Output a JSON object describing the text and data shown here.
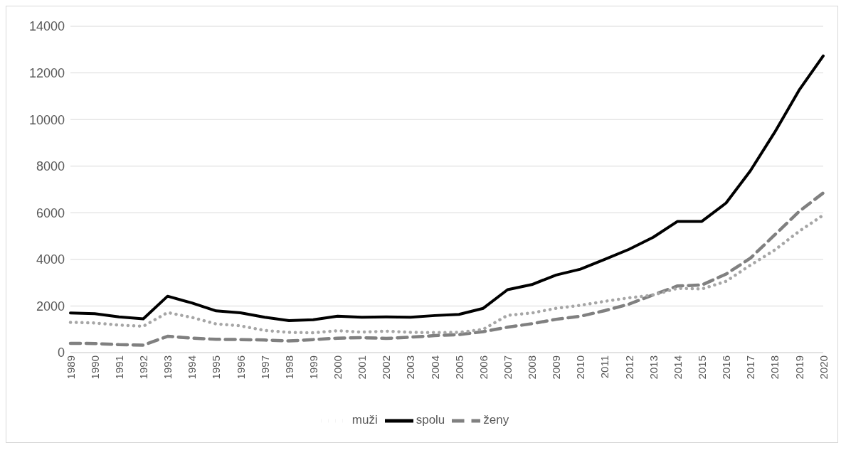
{
  "chart_data": {
    "type": "line",
    "categories": [
      "1989",
      "1990",
      "1991",
      "1992",
      "1993",
      "1994",
      "1995",
      "1996",
      "1997",
      "1998",
      "1999",
      "2000",
      "2001",
      "2002",
      "2003",
      "2004",
      "2005",
      "2006",
      "2007",
      "2008",
      "2009",
      "2010",
      "2011",
      "2012",
      "2013",
      "2014",
      "2015",
      "2016",
      "2017",
      "2018",
      "2019",
      "2020"
    ],
    "series": [
      {
        "name": "spolu",
        "color": "#000000",
        "line_style": "solid",
        "values": [
          1700,
          1670,
          1530,
          1450,
          2420,
          2130,
          1790,
          1710,
          1520,
          1370,
          1410,
          1560,
          1520,
          1530,
          1520,
          1590,
          1640,
          1900,
          2700,
          2920,
          3330,
          3580,
          4000,
          4430,
          4950,
          5630,
          5630,
          6420,
          7800,
          9450,
          11250,
          12730
        ]
      },
      {
        "name": "ženy",
        "color": "#808080",
        "line_style": "dashed",
        "values": [
          400,
          390,
          340,
          320,
          700,
          620,
          570,
          560,
          540,
          500,
          560,
          620,
          640,
          610,
          660,
          730,
          770,
          900,
          1090,
          1240,
          1430,
          1560,
          1800,
          2080,
          2480,
          2860,
          2900,
          3370,
          4050,
          5050,
          6050,
          6850
        ]
      },
      {
        "name": "muži",
        "color": "#a6a6a6",
        "line_style": "dotted",
        "values": [
          1300,
          1270,
          1180,
          1130,
          1720,
          1510,
          1230,
          1150,
          950,
          870,
          850,
          940,
          880,
          920,
          870,
          860,
          870,
          1000,
          1600,
          1700,
          1900,
          2030,
          2200,
          2350,
          2470,
          2760,
          2730,
          3060,
          3750,
          4400,
          5200,
          5900
        ]
      }
    ],
    "ylim": [
      0,
      14000
    ],
    "yticks": [
      0,
      2000,
      4000,
      6000,
      8000,
      10000,
      12000,
      14000
    ],
    "grid": "y",
    "legend": "bottom",
    "marker": "none"
  }
}
